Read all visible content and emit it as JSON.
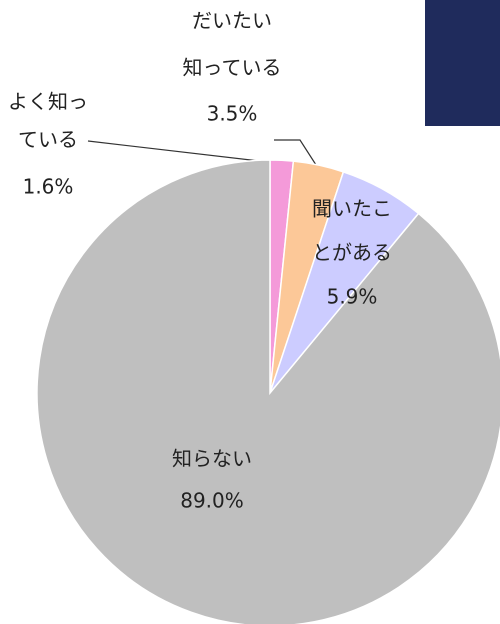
{
  "chart_data": {
    "type": "pie",
    "categories": [
      [
        "よく知っ",
        "ている"
      ],
      [
        "だいたい",
        "知っている"
      ],
      [
        "聞いたこ",
        "とがある"
      ],
      [
        "知らない"
      ]
    ],
    "values": [
      1.6,
      3.5,
      5.9,
      89.0
    ],
    "value_labels": [
      "1.6%",
      "3.5%",
      "5.9%",
      "89.0%"
    ],
    "colors": [
      "#f49ad9",
      "#fcc898",
      "#ccccff",
      "#bfbfbf"
    ]
  }
}
